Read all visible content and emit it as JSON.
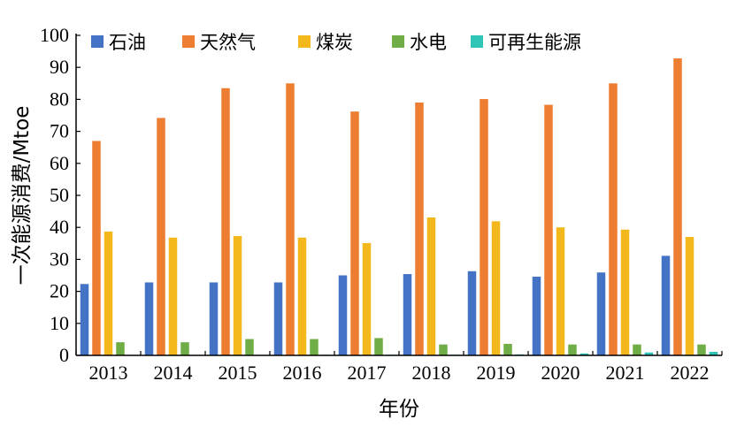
{
  "chart_data": {
    "type": "bar",
    "title": "",
    "xlabel": "年份",
    "ylabel": "一次能源消费/Mtoe",
    "ylim": [
      0,
      100
    ],
    "yticks": [
      0,
      10,
      20,
      30,
      40,
      50,
      60,
      70,
      80,
      90,
      100
    ],
    "grid": false,
    "legend_position": "top",
    "categories": [
      "2013",
      "2014",
      "2015",
      "2016",
      "2017",
      "2018",
      "2019",
      "2020",
      "2021",
      "2022"
    ],
    "series": [
      {
        "name": "石油",
        "color": "#4472c4",
        "values": [
          22.3,
          22.8,
          22.8,
          22.8,
          25.0,
          25.4,
          26.3,
          24.6,
          25.9,
          31.1
        ]
      },
      {
        "name": "天然气",
        "color": "#ed7d31",
        "values": [
          67.0,
          74.2,
          83.5,
          85.0,
          76.2,
          79.0,
          80.1,
          78.3,
          85.0,
          92.8
        ]
      },
      {
        "name": "煤炭",
        "color": "#f2b81c",
        "values": [
          38.7,
          36.8,
          37.3,
          36.8,
          35.1,
          43.1,
          41.9,
          40.0,
          39.3,
          37.0
        ]
      },
      {
        "name": "水电",
        "color": "#70ad47",
        "values": [
          4.1,
          4.1,
          5.1,
          5.1,
          5.4,
          3.4,
          3.6,
          3.4,
          3.4,
          3.4
        ]
      },
      {
        "name": "可再生能源",
        "color": "#2ec4b6",
        "values": [
          0.1,
          0.1,
          0.1,
          0.2,
          0.2,
          0.2,
          0.3,
          0.6,
          0.9,
          1.1
        ]
      }
    ]
  }
}
